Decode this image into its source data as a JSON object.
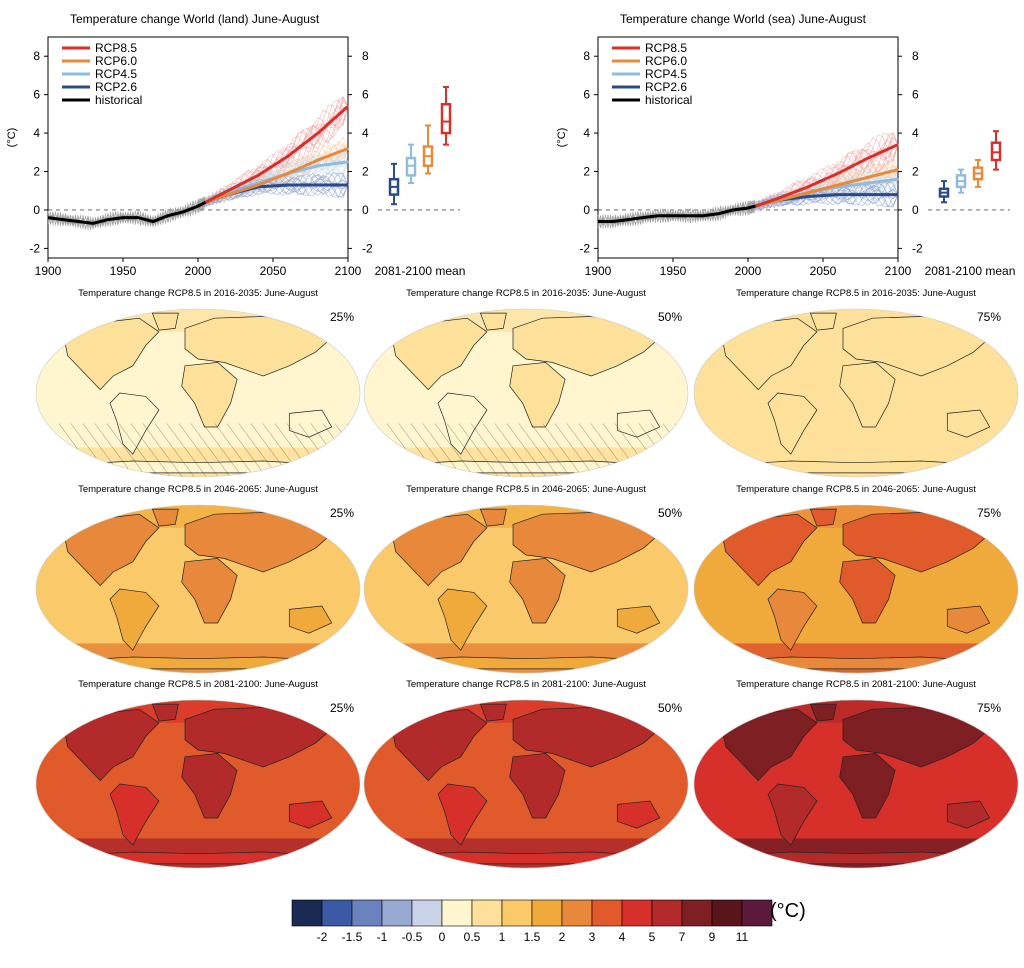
{
  "timeseries": [
    {
      "title": "Temperature change World (land) June-August",
      "ylabel": "(°C)",
      "mean_label": "2081-2100 mean",
      "x_ticks": [
        "1900",
        "1950",
        "2000",
        "2050",
        "2100"
      ],
      "y_ticks": [
        "-2",
        "0",
        "2",
        "4",
        "6",
        "8"
      ],
      "legend": [
        "RCP8.5",
        "RCP6.0",
        "RCP4.5",
        "RCP2.6",
        "historical"
      ]
    },
    {
      "title": "Temperature change World (sea) June-August",
      "ylabel": "(°C)",
      "mean_label": "2081-2100 mean",
      "x_ticks": [
        "1900",
        "1950",
        "2000",
        "2050",
        "2100"
      ],
      "y_ticks": [
        "-2",
        "0",
        "2",
        "4",
        "6",
        "8"
      ],
      "legend": [
        "RCP8.5",
        "RCP6.0",
        "RCP4.5",
        "RCP2.6",
        "historical"
      ]
    }
  ],
  "maps": [
    {
      "title": "Temperature change RCP8.5 in 2016-2035: June-August",
      "percentile": "25%"
    },
    {
      "title": "Temperature change RCP8.5 in 2016-2035: June-August",
      "percentile": "50%"
    },
    {
      "title": "Temperature change RCP8.5 in 2016-2035: June-August",
      "percentile": "75%"
    },
    {
      "title": "Temperature change RCP8.5 in 2046-2065: June-August",
      "percentile": "25%"
    },
    {
      "title": "Temperature change RCP8.5 in 2046-2065: June-August",
      "percentile": "50%"
    },
    {
      "title": "Temperature change RCP8.5 in 2046-2065: June-August",
      "percentile": "75%"
    },
    {
      "title": "Temperature change RCP8.5 in 2081-2100: June-August",
      "percentile": "25%"
    },
    {
      "title": "Temperature change RCP8.5 in 2081-2100: June-August",
      "percentile": "50%"
    },
    {
      "title": "Temperature change RCP8.5 in 2081-2100: June-August",
      "percentile": "75%"
    }
  ],
  "colorbar": {
    "unit": "(°C)",
    "labels": [
      "-2",
      "-1.5",
      "-1",
      "-0.5",
      "0",
      "0.5",
      "1",
      "1.5",
      "2",
      "3",
      "4",
      "5",
      "7",
      "9",
      "11"
    ],
    "colors": [
      "#1b2a52",
      "#3b5aa5",
      "#6a82bd",
      "#98aad3",
      "#c9d2e6",
      "#fff5cf",
      "#fde09a",
      "#f9c96a",
      "#f0aa3c",
      "#e8883a",
      "#e05a2c",
      "#d7302a",
      "#b22a2a",
      "#7e1f23",
      "#591519",
      "#5c1a3a"
    ]
  },
  "chart_data": [
    {
      "type": "line",
      "title": "Temperature change World (land) June-August",
      "xlabel": "",
      "ylabel": "(°C)",
      "xlim": [
        1900,
        2100
      ],
      "ylim": [
        -2.5,
        9
      ],
      "series": [
        {
          "name": "historical",
          "color": "#000000",
          "x": [
            1900,
            1910,
            1920,
            1930,
            1940,
            1950,
            1960,
            1970,
            1980,
            1990,
            2000,
            2005
          ],
          "values": [
            -0.4,
            -0.5,
            -0.6,
            -0.7,
            -0.5,
            -0.4,
            -0.4,
            -0.6,
            -0.3,
            -0.1,
            0.2,
            0.4
          ]
        },
        {
          "name": "RCP8.5",
          "color": "#d7302a",
          "x": [
            2005,
            2020,
            2040,
            2060,
            2080,
            2100
          ],
          "values": [
            0.4,
            1.0,
            1.8,
            2.8,
            4.0,
            5.4
          ]
        },
        {
          "name": "RCP6.0",
          "color": "#e8883a",
          "x": [
            2005,
            2020,
            2040,
            2060,
            2080,
            2100
          ],
          "values": [
            0.4,
            0.8,
            1.3,
            1.9,
            2.6,
            3.2
          ]
        },
        {
          "name": "RCP4.5",
          "color": "#8fbbe0",
          "x": [
            2005,
            2020,
            2040,
            2060,
            2080,
            2100
          ],
          "values": [
            0.4,
            0.9,
            1.4,
            1.9,
            2.3,
            2.5
          ]
        },
        {
          "name": "RCP2.6",
          "color": "#2b4a8a",
          "x": [
            2005,
            2020,
            2040,
            2060,
            2080,
            2100
          ],
          "values": [
            0.4,
            0.8,
            1.2,
            1.3,
            1.3,
            1.3
          ]
        }
      ],
      "boxes_2081_2100": [
        {
          "name": "RCP2.6",
          "color": "#2b4a8a",
          "min": 0.3,
          "q1": 0.8,
          "median": 1.2,
          "q3": 1.6,
          "max": 2.4
        },
        {
          "name": "RCP4.5",
          "color": "#8fbbe0",
          "min": 1.4,
          "q1": 1.8,
          "median": 2.3,
          "q3": 2.7,
          "max": 3.4
        },
        {
          "name": "RCP6.0",
          "color": "#e8883a",
          "min": 1.9,
          "q1": 2.3,
          "median": 2.8,
          "q3": 3.3,
          "max": 4.4
        },
        {
          "name": "RCP8.5",
          "color": "#d7302a",
          "min": 3.4,
          "q1": 4.0,
          "median": 4.6,
          "q3": 5.5,
          "max": 6.4
        }
      ]
    },
    {
      "type": "line",
      "title": "Temperature change World (sea) June-August",
      "xlabel": "",
      "ylabel": "(°C)",
      "xlim": [
        1900,
        2100
      ],
      "ylim": [
        -2.5,
        9
      ],
      "series": [
        {
          "name": "historical",
          "color": "#000000",
          "x": [
            1900,
            1910,
            1920,
            1930,
            1940,
            1950,
            1960,
            1970,
            1980,
            1990,
            2000,
            2005
          ],
          "values": [
            -0.6,
            -0.6,
            -0.5,
            -0.4,
            -0.3,
            -0.3,
            -0.3,
            -0.3,
            -0.2,
            0.0,
            0.1,
            0.2
          ]
        },
        {
          "name": "RCP8.5",
          "color": "#d7302a",
          "x": [
            2005,
            2020,
            2040,
            2060,
            2080,
            2100
          ],
          "values": [
            0.2,
            0.6,
            1.2,
            1.9,
            2.7,
            3.4
          ]
        },
        {
          "name": "RCP6.0",
          "color": "#e8883a",
          "x": [
            2005,
            2020,
            2040,
            2060,
            2080,
            2100
          ],
          "values": [
            0.2,
            0.5,
            0.9,
            1.3,
            1.7,
            2.1
          ]
        },
        {
          "name": "RCP4.5",
          "color": "#8fbbe0",
          "x": [
            2005,
            2020,
            2040,
            2060,
            2080,
            2100
          ],
          "values": [
            0.2,
            0.5,
            0.9,
            1.2,
            1.4,
            1.6
          ]
        },
        {
          "name": "RCP2.6",
          "color": "#2b4a8a",
          "x": [
            2005,
            2020,
            2040,
            2060,
            2080,
            2100
          ],
          "values": [
            0.2,
            0.5,
            0.7,
            0.8,
            0.8,
            0.8
          ]
        }
      ],
      "boxes_2081_2100": [
        {
          "name": "RCP2.6",
          "color": "#2b4a8a",
          "min": 0.4,
          "q1": 0.7,
          "median": 0.9,
          "q3": 1.1,
          "max": 1.5
        },
        {
          "name": "RCP4.5",
          "color": "#8fbbe0",
          "min": 0.9,
          "q1": 1.2,
          "median": 1.5,
          "q3": 1.8,
          "max": 2.1
        },
        {
          "name": "RCP6.0",
          "color": "#e8883a",
          "min": 1.2,
          "q1": 1.6,
          "median": 1.9,
          "q3": 2.2,
          "max": 2.6
        },
        {
          "name": "RCP8.5",
          "color": "#d7302a",
          "min": 2.1,
          "q1": 2.6,
          "median": 3.0,
          "q3": 3.5,
          "max": 4.1
        }
      ]
    }
  ]
}
